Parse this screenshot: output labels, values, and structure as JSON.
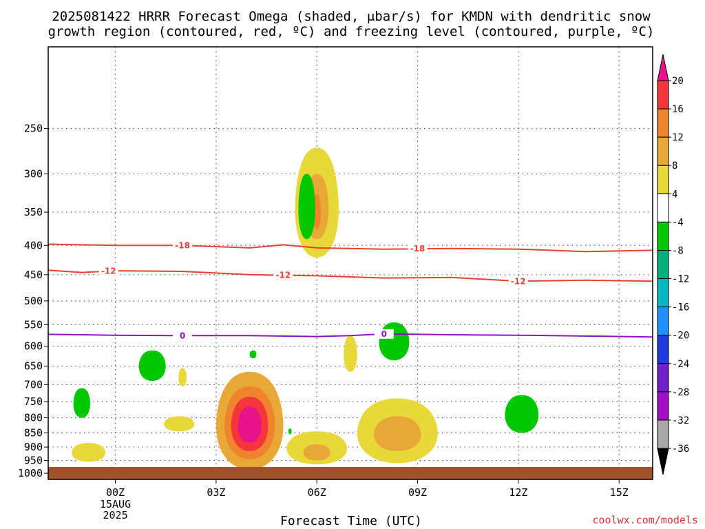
{
  "title": {
    "line1": "2025081422 HRRR Forecast Omega (shaded, μbar/s) for KMDN with dendritic snow",
    "line2": "growth region (contoured, red, ºC) and freezing level (contoured, purple, ºC)"
  },
  "xlabel": "Forecast Time (UTC)",
  "credit": "coolwx.com/models",
  "chart_data": {
    "type": "heatmap",
    "x_unit": "forecast hour relative to 2025-08-15 00Z",
    "x_ticks": [
      {
        "hour": 0,
        "label": "00Z",
        "date_line1": "15AUG",
        "date_line2": "2025"
      },
      {
        "hour": 3,
        "label": "03Z"
      },
      {
        "hour": 6,
        "label": "06Z"
      },
      {
        "hour": 9,
        "label": "09Z"
      },
      {
        "hour": 12,
        "label": "12Z"
      },
      {
        "hour": 15,
        "label": "15Z"
      }
    ],
    "x_range": [
      -2,
      16
    ],
    "y_unit": "hPa",
    "y_ticks": [
      250,
      300,
      350,
      400,
      450,
      500,
      550,
      600,
      650,
      700,
      750,
      800,
      850,
      900,
      950,
      1000
    ],
    "y_range": [
      180,
      1025
    ],
    "grid": true,
    "surface_fill_pressure": 975,
    "colorbar": {
      "labels": [
        "20",
        "16",
        "12",
        "8",
        "4",
        "-4",
        "-8",
        "-12",
        "-16",
        "-20",
        "-24",
        "-28",
        "-32",
        "-36"
      ],
      "colors": [
        "#e8138a",
        "#f4353a",
        "#f0832e",
        "#e8a836",
        "#e8d83a",
        "#ffffff",
        "#00c800",
        "#00b07a",
        "#00b8c0",
        "#1e90ff",
        "#1e3cdc",
        "#7020c8",
        "#a010c0",
        "#a8a8a8",
        "#000000"
      ]
    },
    "omega_regions": [
      {
        "x": 4.0,
        "p": 825,
        "rx": 1.0,
        "rp": 160,
        "value": 8
      },
      {
        "x": 4.0,
        "p": 825,
        "rx": 0.75,
        "rp": 120,
        "value": 12
      },
      {
        "x": 4.0,
        "p": 825,
        "rx": 0.55,
        "rp": 90,
        "value": 16
      },
      {
        "x": 4.0,
        "p": 825,
        "rx": 0.35,
        "rp": 60,
        "value": 20
      },
      {
        "x": 6.0,
        "p": 345,
        "rx": 0.65,
        "rp": 75,
        "value": 4
      },
      {
        "x": 6.0,
        "p": 345,
        "rx": 0.35,
        "rp": 45,
        "value": 8
      },
      {
        "x": 6.0,
        "p": 350,
        "rx": 0.12,
        "rp": 25,
        "value": 12
      },
      {
        "x": 8.4,
        "p": 850,
        "rx": 1.2,
        "rp": 110,
        "value": 4
      },
      {
        "x": 8.4,
        "p": 855,
        "rx": 0.7,
        "rp": 60,
        "value": 8
      },
      {
        "x": 6.0,
        "p": 905,
        "rx": 0.9,
        "rp": 60,
        "value": 4
      },
      {
        "x": 6.0,
        "p": 920,
        "rx": 0.4,
        "rp": 30,
        "value": 8
      },
      {
        "x": -0.8,
        "p": 920,
        "rx": 0.5,
        "rp": 35,
        "value": 4
      },
      {
        "x": 1.9,
        "p": 820,
        "rx": 0.45,
        "rp": 25,
        "value": 4
      },
      {
        "x": 7.0,
        "p": 620,
        "rx": 0.2,
        "rp": 45,
        "value": 4
      },
      {
        "x": 2.0,
        "p": 680,
        "rx": 0.12,
        "rp": 25,
        "value": 4
      },
      {
        "x": 1.1,
        "p": 650,
        "rx": 0.4,
        "rp": 40,
        "value": -8
      },
      {
        "x": 8.3,
        "p": 590,
        "rx": 0.45,
        "rp": 45,
        "value": -8
      },
      {
        "x": 12.1,
        "p": 790,
        "rx": 0.5,
        "rp": 60,
        "value": -8
      },
      {
        "x": -1.0,
        "p": 755,
        "rx": 0.25,
        "rp": 45,
        "value": -8
      },
      {
        "x": 5.7,
        "p": 345,
        "rx": 0.25,
        "rp": 45,
        "value": -8
      },
      {
        "x": 4.1,
        "p": 620,
        "rx": 0.1,
        "rp": 10,
        "value": -8
      },
      {
        "x": 5.2,
        "p": 845,
        "rx": 0.05,
        "rp": 10,
        "value": -8
      }
    ],
    "isotherms": [
      {
        "name": "-18",
        "color": "#e84030",
        "points": [
          [
            -2,
            398
          ],
          [
            0,
            400
          ],
          [
            2,
            400
          ],
          [
            4,
            404
          ],
          [
            5,
            399
          ],
          [
            6,
            404
          ],
          [
            8,
            406
          ],
          [
            10,
            405
          ],
          [
            12,
            406
          ],
          [
            14,
            410
          ],
          [
            16,
            408
          ]
        ],
        "labels": [
          {
            "x": 2.0,
            "p": 400,
            "text": "-18"
          },
          {
            "x": 9.0,
            "p": 407,
            "text": "-18"
          }
        ]
      },
      {
        "name": "-12",
        "color": "#e84030",
        "points": [
          [
            -2,
            442
          ],
          [
            -1,
            446
          ],
          [
            0,
            443
          ],
          [
            2,
            444
          ],
          [
            4,
            450
          ],
          [
            6,
            452
          ],
          [
            8,
            456
          ],
          [
            10,
            455
          ],
          [
            12,
            462
          ],
          [
            14,
            460
          ],
          [
            16,
            462
          ]
        ],
        "labels": [
          {
            "x": -0.2,
            "p": 443,
            "text": "-12"
          },
          {
            "x": 5.0,
            "p": 450,
            "text": "-12"
          },
          {
            "x": 12.0,
            "p": 462,
            "text": "-12"
          }
        ]
      },
      {
        "name": "0",
        "color": "#9010c8",
        "points": [
          [
            -2,
            572
          ],
          [
            0,
            574
          ],
          [
            2,
            575
          ],
          [
            4,
            575
          ],
          [
            6,
            577
          ],
          [
            7,
            575
          ],
          [
            8,
            571
          ],
          [
            10,
            573
          ],
          [
            12,
            574
          ],
          [
            14,
            576
          ],
          [
            16,
            578
          ]
        ],
        "labels": [
          {
            "x": 2.0,
            "p": 575,
            "text": "0"
          },
          {
            "x": 8.0,
            "p": 571,
            "text": "0"
          }
        ]
      }
    ]
  }
}
